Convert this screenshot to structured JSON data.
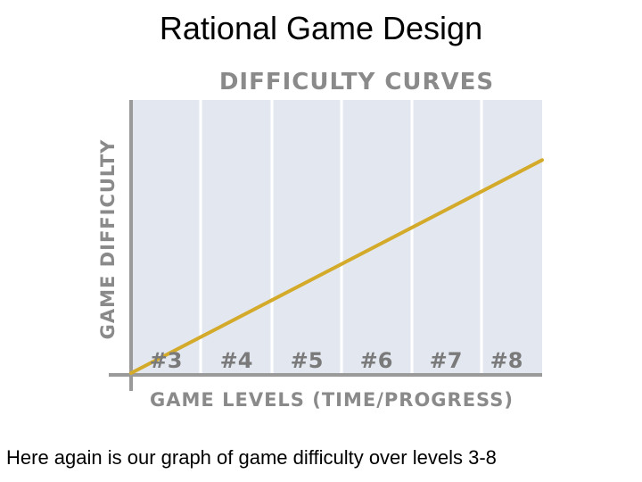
{
  "slide": {
    "title": "Rational Game Design",
    "caption": "Here again is our graph of game difficulty over levels 3-8"
  },
  "colors": {
    "plot_background": "#e3e8f0",
    "grid_line": "#ffffff",
    "axis": "#9a9a9a",
    "series_line": "#d4aa2a",
    "label_text": "#8a8a8a"
  },
  "chart_data": {
    "type": "line",
    "title": "DIFFICULTY CURVES",
    "xlabel": "GAME LEVELS (TIME/PROGRESS)",
    "ylabel": "GAME DIFFICULTY",
    "categories": [
      "#3",
      "#4",
      "#5",
      "#6",
      "#7",
      "#8"
    ],
    "xlim": [
      3,
      8.8
    ],
    "ylim": [
      0,
      1
    ],
    "series": [
      {
        "x": [
          3,
          8.8
        ],
        "y": [
          0,
          0.78
        ]
      }
    ],
    "grid": true
  }
}
